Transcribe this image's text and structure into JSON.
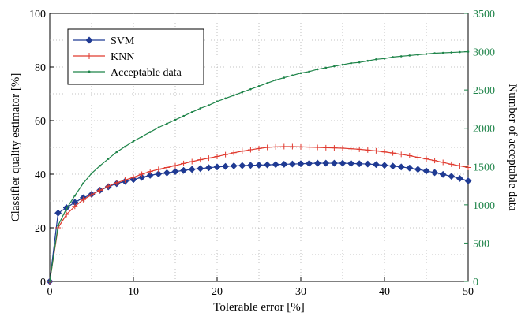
{
  "chart_data": {
    "type": "line",
    "xlabel": "Tolerable error [%]",
    "ylabel_left": "Classifier quality estimator [%]",
    "ylabel_right": "Number of acceptable data",
    "xlim": [
      0,
      50
    ],
    "ylim_left": [
      0,
      100
    ],
    "ylim_right": [
      0,
      3500
    ],
    "x_ticks": [
      "0",
      "10",
      "20",
      "30",
      "40",
      "50"
    ],
    "y_ticks_left": [
      "0",
      "20",
      "40",
      "60",
      "80",
      "100"
    ],
    "y_ticks_right": [
      "0",
      "500",
      "1000",
      "1500",
      "2000",
      "2500",
      "3000",
      "3500"
    ],
    "grid": true,
    "legend_position": "top-left",
    "x": [
      0,
      1,
      2,
      3,
      4,
      5,
      6,
      7,
      8,
      9,
      10,
      11,
      12,
      13,
      14,
      15,
      16,
      17,
      18,
      19,
      20,
      21,
      22,
      23,
      24,
      25,
      26,
      27,
      28,
      29,
      30,
      31,
      32,
      33,
      34,
      35,
      36,
      37,
      38,
      39,
      40,
      41,
      42,
      43,
      44,
      45,
      46,
      47,
      48,
      49,
      50
    ],
    "series": [
      {
        "name": "SVM",
        "axis": "left",
        "color": "#1f3a93",
        "marker": "diamond",
        "values": [
          0,
          25.5,
          27.5,
          29.5,
          31.2,
          32.5,
          34,
          35.3,
          36.5,
          37.3,
          38,
          38.8,
          39.6,
          40.1,
          40.5,
          41,
          41.4,
          41.8,
          42.1,
          42.4,
          42.7,
          42.9,
          43.1,
          43.2,
          43.3,
          43.4,
          43.5,
          43.6,
          43.7,
          43.8,
          43.9,
          44,
          44.1,
          44.1,
          44.1,
          44.1,
          44,
          43.9,
          43.8,
          43.6,
          43.3,
          43,
          42.7,
          42.3,
          41.8,
          41.2,
          40.6,
          39.9,
          39.2,
          38.4,
          37.5
        ]
      },
      {
        "name": "KNN",
        "axis": "left",
        "color": "#e03a2f",
        "marker": "plus",
        "values": [
          0,
          20,
          25,
          28,
          30.5,
          32.3,
          34,
          35.5,
          36.8,
          37.8,
          38.8,
          40,
          41,
          41.8,
          42.5,
          43.2,
          44,
          44.7,
          45.4,
          46,
          46.6,
          47.3,
          48,
          48.6,
          49.1,
          49.6,
          50,
          50.2,
          50.3,
          50.3,
          50.2,
          50.1,
          50,
          49.9,
          49.8,
          49.7,
          49.5,
          49.3,
          49,
          48.7,
          48.3,
          47.9,
          47.4,
          46.9,
          46.3,
          45.7,
          45.1,
          44.4,
          43.7,
          43.1,
          42.5
        ]
      },
      {
        "name": "Acceptable data",
        "axis": "right",
        "color": "#1e8449",
        "marker": "dot",
        "values": [
          0,
          730,
          950,
          1120,
          1280,
          1410,
          1510,
          1600,
          1690,
          1760,
          1830,
          1890,
          1950,
          2010,
          2060,
          2110,
          2160,
          2210,
          2260,
          2300,
          2350,
          2390,
          2430,
          2470,
          2510,
          2550,
          2590,
          2630,
          2660,
          2690,
          2720,
          2740,
          2770,
          2790,
          2810,
          2830,
          2850,
          2860,
          2880,
          2900,
          2910,
          2930,
          2940,
          2950,
          2960,
          2970,
          2980,
          2985,
          2990,
          2995,
          3000
        ]
      }
    ]
  }
}
